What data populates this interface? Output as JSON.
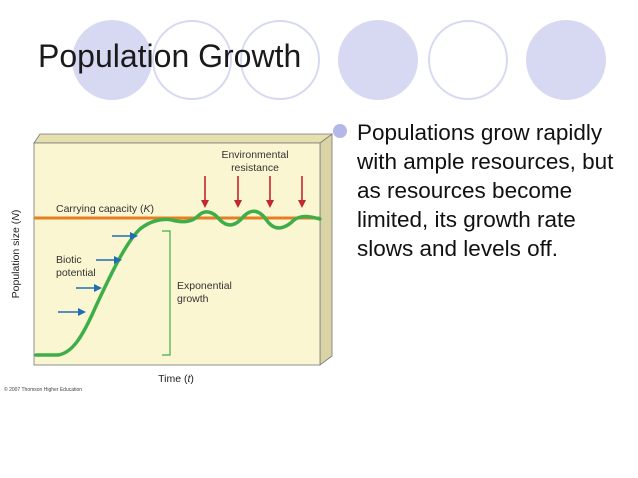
{
  "slide": {
    "title": "Population Growth",
    "bullet": "Populations grow rapidly with ample resources, but as resources become limited, its growth rate slows and levels off.",
    "colors": {
      "circle_filled": "#d7d9f2",
      "circle_outline": "#d7d9f2",
      "bullet": "#b3b8e6"
    }
  },
  "figure": {
    "labels": {
      "environmental_resistance_line1": "Environmental",
      "environmental_resistance_line2": "resistance",
      "carrying_capacity": "Carrying capacity (K)",
      "biotic_potential_line1": "Biotic",
      "biotic_potential_line2": "potential",
      "exponential_growth_line1": "Exponential",
      "exponential_growth_line2": "growth",
      "x_axis": "Time (t)",
      "y_axis": "Population size (N)",
      "copyright": "© 2007 Thomson Higher Education"
    },
    "colors": {
      "panel_bg": "#faf6d2",
      "curve": "#3fae49",
      "carrying_capacity": "#e67e22",
      "resistance_arrows": "#c4262e",
      "biotic_arrows": "#1f6db3",
      "label_text": "#333333"
    }
  }
}
